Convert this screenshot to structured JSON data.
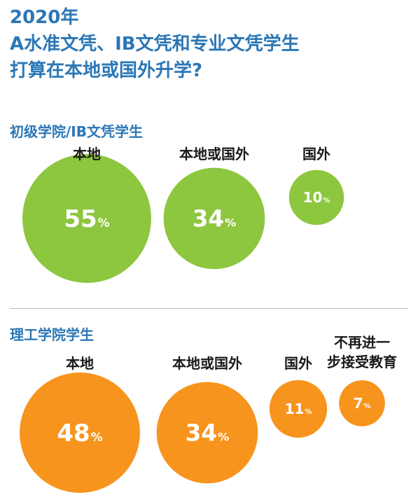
{
  "title": {
    "line1": "2020年",
    "line2": "A水准文凭、IB文凭和专业文凭学生",
    "line3": "打算在本地或国外升学?"
  },
  "colors": {
    "title": "#2b77b6",
    "green": "#8dc63f",
    "orange": "#f7941d",
    "label": "#1a1a1a",
    "value": "#ffffff"
  },
  "chart_data": [
    {
      "type": "bubble",
      "title": "初级学院/IB文凭学生",
      "unit": "%",
      "color": "#8dc63f",
      "categories": [
        "本地",
        "本地或国外",
        "国外"
      ],
      "values": [
        55,
        34,
        10
      ]
    },
    {
      "type": "bubble",
      "title": "理工学院学生",
      "unit": "%",
      "color": "#f7941d",
      "categories": [
        "本地",
        "本地或国外",
        "国外",
        "不再进一步接受教育"
      ],
      "values": [
        48,
        34,
        11,
        7
      ]
    }
  ]
}
